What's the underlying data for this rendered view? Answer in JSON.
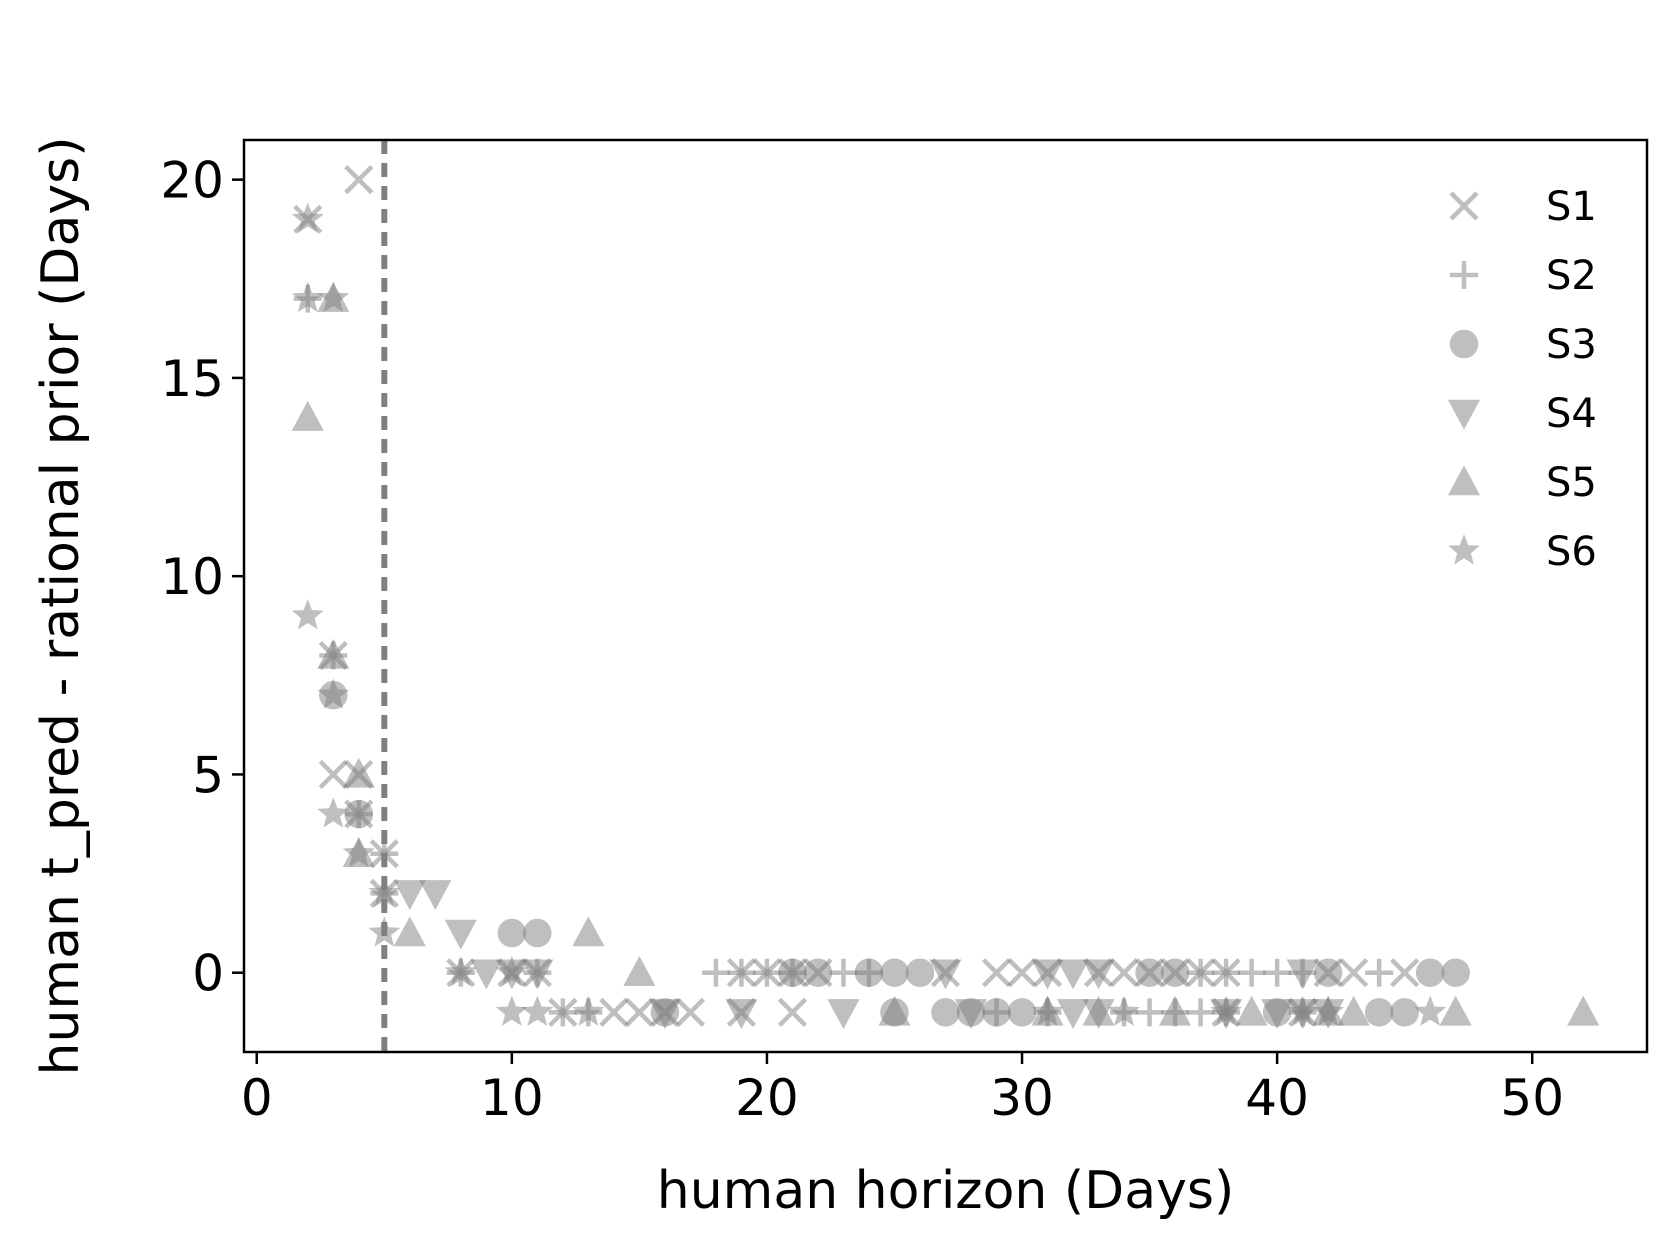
{
  "chart_data": {
    "type": "scatter",
    "xlabel": "human horizon (Days)",
    "ylabel": "human t_pred - rational prior (Days)",
    "xlim": [
      -0.5,
      54.5
    ],
    "ylim": [
      -2,
      21
    ],
    "xticks": [
      0,
      10,
      20,
      30,
      40,
      50
    ],
    "yticks": [
      0,
      5,
      10,
      15,
      20
    ],
    "grid": false,
    "legend_position": "top-right",
    "reference_line": {
      "x": 5,
      "style": "dashed",
      "color": "#808080"
    },
    "series": [
      {
        "name": "S1",
        "marker": "x",
        "color": "#808080",
        "alpha": 0.5,
        "points": [
          [
            4,
            20
          ],
          [
            2,
            19
          ],
          [
            3,
            8
          ],
          [
            3,
            5
          ],
          [
            4,
            5
          ],
          [
            4,
            4
          ],
          [
            5,
            3
          ],
          [
            5,
            2
          ],
          [
            8,
            0
          ],
          [
            10,
            0
          ],
          [
            11,
            0
          ],
          [
            16,
            -1
          ],
          [
            17,
            -1
          ],
          [
            19,
            -1
          ],
          [
            21,
            -1
          ],
          [
            19,
            0
          ],
          [
            20,
            0
          ],
          [
            21,
            0
          ],
          [
            22,
            0
          ],
          [
            27,
            0
          ],
          [
            29,
            0
          ],
          [
            30,
            0
          ],
          [
            31,
            0
          ],
          [
            33,
            0
          ],
          [
            34,
            0
          ],
          [
            35,
            0
          ],
          [
            36,
            0
          ],
          [
            37,
            0
          ],
          [
            38,
            0
          ],
          [
            42,
            0
          ],
          [
            43,
            0
          ],
          [
            45,
            0
          ],
          [
            12,
            -1
          ],
          [
            14,
            -1
          ],
          [
            15,
            -1
          ],
          [
            38,
            -1
          ],
          [
            41,
            -1
          ]
        ]
      },
      {
        "name": "S2",
        "marker": "+",
        "color": "#808080",
        "alpha": 0.5,
        "points": [
          [
            2,
            17
          ],
          [
            3,
            8
          ],
          [
            4,
            4
          ],
          [
            5,
            3
          ],
          [
            5,
            2
          ],
          [
            8,
            0
          ],
          [
            11,
            0
          ],
          [
            18,
            0
          ],
          [
            19,
            0
          ],
          [
            20,
            0
          ],
          [
            21,
            0
          ],
          [
            23,
            0
          ],
          [
            24,
            0
          ],
          [
            37,
            0
          ],
          [
            38,
            0
          ],
          [
            39,
            0
          ],
          [
            40,
            0
          ],
          [
            41,
            0
          ],
          [
            44,
            0
          ],
          [
            12,
            -1
          ],
          [
            13,
            -1
          ],
          [
            29,
            -1
          ],
          [
            31,
            -1
          ],
          [
            34,
            -1
          ],
          [
            35,
            -1
          ],
          [
            36,
            -1
          ],
          [
            37,
            -1
          ],
          [
            38,
            -1
          ],
          [
            41,
            -1
          ]
        ]
      },
      {
        "name": "S3",
        "marker": "o",
        "color": "#808080",
        "alpha": 0.5,
        "points": [
          [
            3,
            7
          ],
          [
            4,
            4
          ],
          [
            10,
            1
          ],
          [
            11,
            1
          ],
          [
            21,
            0
          ],
          [
            22,
            0
          ],
          [
            24,
            0
          ],
          [
            25,
            0
          ],
          [
            26,
            0
          ],
          [
            35,
            0
          ],
          [
            36,
            0
          ],
          [
            42,
            0
          ],
          [
            46,
            0
          ],
          [
            47,
            0
          ],
          [
            16,
            -1
          ],
          [
            25,
            -1
          ],
          [
            27,
            -1
          ],
          [
            28,
            -1
          ],
          [
            29,
            -1
          ],
          [
            30,
            -1
          ],
          [
            40,
            -1
          ],
          [
            44,
            -1
          ],
          [
            45,
            -1
          ]
        ]
      },
      {
        "name": "S4",
        "marker": "v",
        "color": "#808080",
        "alpha": 0.5,
        "points": [
          [
            6,
            2
          ],
          [
            7,
            2
          ],
          [
            8,
            1
          ],
          [
            9,
            0
          ],
          [
            10,
            0
          ],
          [
            11,
            0
          ],
          [
            27,
            0
          ],
          [
            31,
            0
          ],
          [
            32,
            0
          ],
          [
            33,
            0
          ],
          [
            41,
            0
          ],
          [
            16,
            -1
          ],
          [
            19,
            -1
          ],
          [
            23,
            -1
          ],
          [
            28,
            -1
          ],
          [
            32,
            -1
          ],
          [
            33,
            -1
          ],
          [
            38,
            -1
          ],
          [
            40,
            -1
          ],
          [
            41,
            -1
          ],
          [
            42,
            -1
          ]
        ]
      },
      {
        "name": "S5",
        "marker": "^",
        "color": "#808080",
        "alpha": 0.5,
        "points": [
          [
            2,
            14
          ],
          [
            3,
            8
          ],
          [
            3,
            17
          ],
          [
            4,
            5
          ],
          [
            4,
            3
          ],
          [
            6,
            1
          ],
          [
            13,
            1
          ],
          [
            15,
            0
          ],
          [
            25,
            -1
          ],
          [
            31,
            -1
          ],
          [
            33,
            -1
          ],
          [
            36,
            -1
          ],
          [
            39,
            -1
          ],
          [
            42,
            -1
          ],
          [
            43,
            -1
          ],
          [
            47,
            -1
          ],
          [
            52,
            -1
          ]
        ]
      },
      {
        "name": "S6",
        "marker": "*",
        "color": "#808080",
        "alpha": 0.5,
        "points": [
          [
            2,
            19
          ],
          [
            2,
            17
          ],
          [
            3,
            17
          ],
          [
            2,
            9
          ],
          [
            3,
            7
          ],
          [
            3,
            4
          ],
          [
            4,
            3
          ],
          [
            5,
            1
          ],
          [
            5,
            2
          ],
          [
            8,
            0
          ],
          [
            10,
            0
          ],
          [
            10,
            -1
          ],
          [
            11,
            -1
          ],
          [
            13,
            -1
          ],
          [
            31,
            -1
          ],
          [
            34,
            -1
          ],
          [
            38,
            -1
          ],
          [
            41,
            -1
          ],
          [
            42,
            -1
          ],
          [
            46,
            -1
          ]
        ]
      }
    ]
  }
}
